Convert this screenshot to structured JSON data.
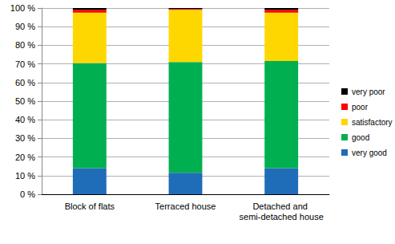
{
  "chart_data": {
    "type": "bar",
    "stacked": true,
    "grid": true,
    "legend": "right",
    "categories": [
      "Block of flats",
      "Terraced house",
      "Detached and semi-detached house"
    ],
    "series": [
      {
        "name": "very good",
        "color": "#1f6cb8",
        "values": [
          14,
          11.5,
          14
        ]
      },
      {
        "name": "good",
        "color": "#00b050",
        "values": [
          56.5,
          59.5,
          57.5
        ]
      },
      {
        "name": "satisfactory",
        "color": "#ffd700",
        "values": [
          27,
          28,
          26
        ]
      },
      {
        "name": "poor",
        "color": "#ff0000",
        "values": [
          1.5,
          0.5,
          1.5
        ]
      },
      {
        "name": "very poor",
        "color": "#000000",
        "values": [
          1,
          0.5,
          1
        ]
      }
    ],
    "ylim": [
      0,
      100
    ],
    "yticks": [
      {
        "value": 0,
        "label": "0 %"
      },
      {
        "value": 10,
        "label": "10 %"
      },
      {
        "value": 20,
        "label": "20 %"
      },
      {
        "value": 30,
        "label": "30 %"
      },
      {
        "value": 40,
        "label": "40 %"
      },
      {
        "value": 50,
        "label": "50 %"
      },
      {
        "value": 60,
        "label": "60 %"
      },
      {
        "value": 70,
        "label": "70 %"
      },
      {
        "value": 80,
        "label": "80 %"
      },
      {
        "value": 90,
        "label": "90 %"
      },
      {
        "value": 100,
        "label": "100 %"
      }
    ]
  }
}
